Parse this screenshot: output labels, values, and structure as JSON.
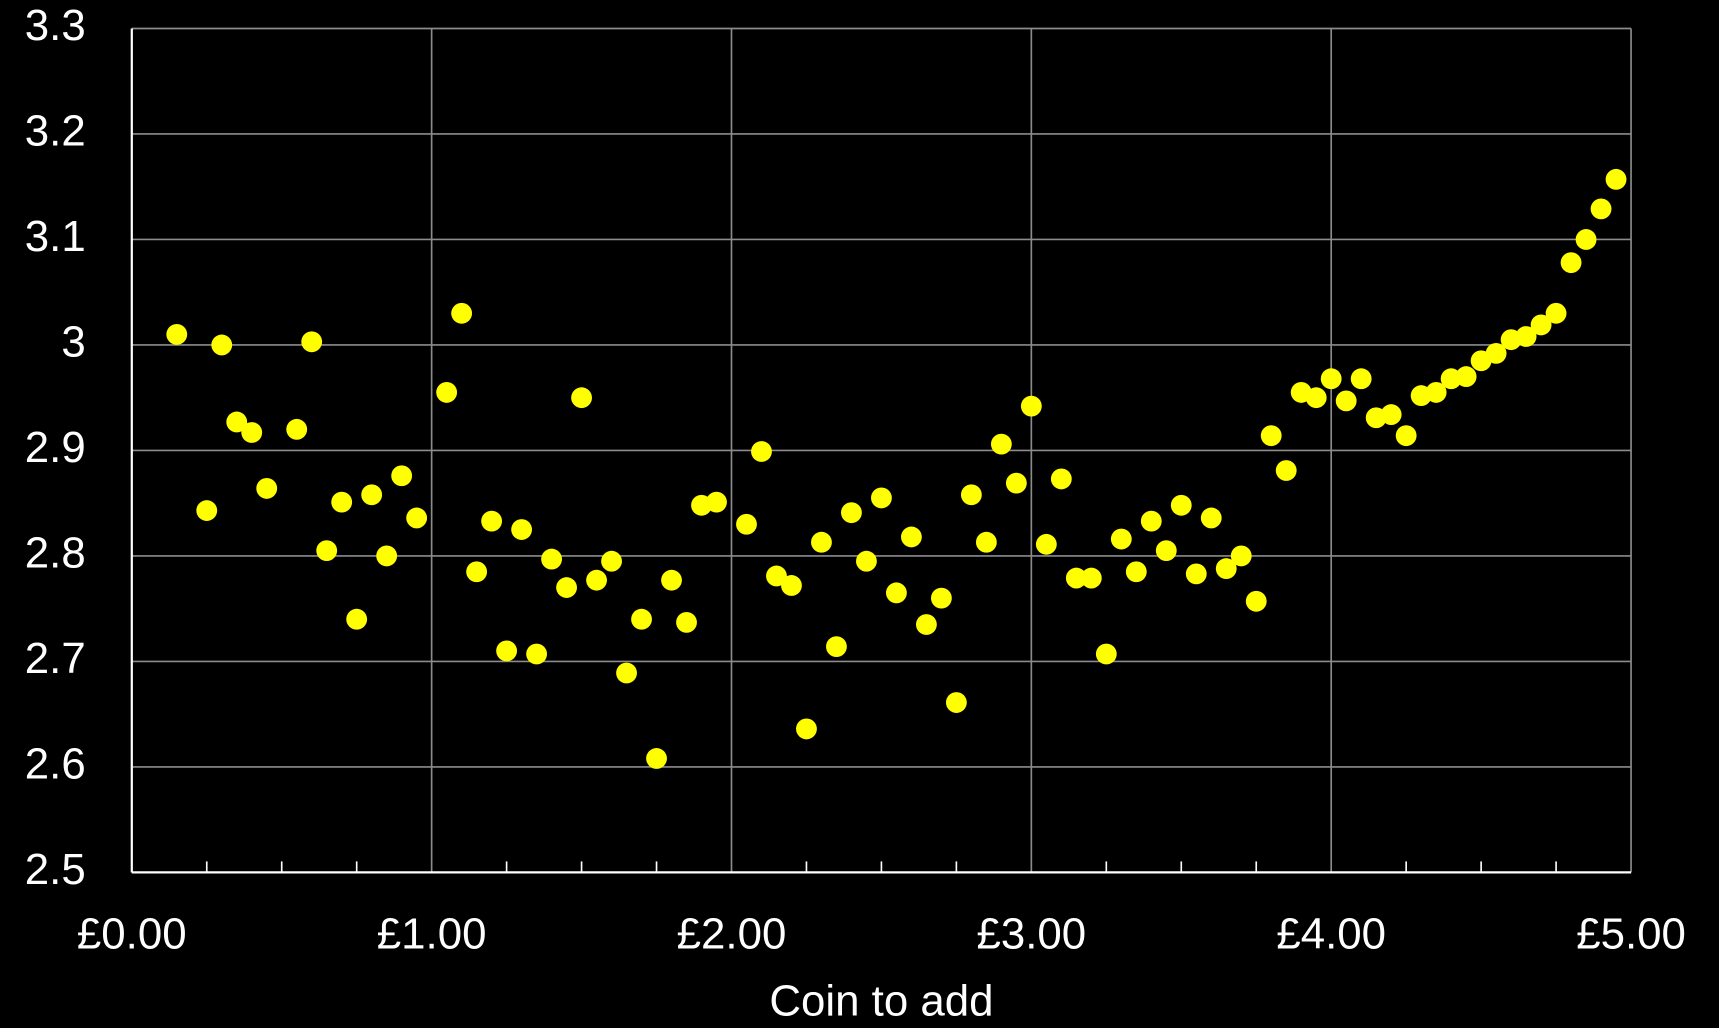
{
  "chart_data": {
    "type": "scatter",
    "x_label": "Coin to add",
    "color": "#ffff00",
    "grid": true,
    "x": [
      0.15,
      0.25,
      0.3,
      0.35,
      0.4,
      0.45,
      0.55,
      0.6,
      0.65,
      0.7,
      0.75,
      0.8,
      0.85,
      0.9,
      0.95,
      1.05,
      1.1,
      1.15,
      1.2,
      1.25,
      1.3,
      1.35,
      1.4,
      1.45,
      1.5,
      1.55,
      1.6,
      1.65,
      1.7,
      1.75,
      1.8,
      1.85,
      1.9,
      1.95,
      2.05,
      2.1,
      2.15,
      2.2,
      2.25,
      2.3,
      2.35,
      2.4,
      2.45,
      2.5,
      2.55,
      2.6,
      2.65,
      2.7,
      2.75,
      2.8,
      2.85,
      2.9,
      2.95,
      3.0,
      3.05,
      3.1,
      3.15,
      3.2,
      3.25,
      3.3,
      3.35,
      3.4,
      3.45,
      3.5,
      3.55,
      3.6,
      3.65,
      3.7,
      3.75,
      3.8,
      3.85,
      3.9,
      3.95,
      4.0,
      4.05,
      4.1,
      4.15,
      4.2,
      4.25,
      4.3,
      4.35,
      4.4,
      4.45,
      4.5,
      4.55,
      4.6,
      4.65,
      4.7,
      4.75,
      4.8,
      4.85,
      4.9,
      4.95
    ],
    "values": [
      3.01,
      2.843,
      3.0,
      2.927,
      2.917,
      2.864,
      2.92,
      3.003,
      2.805,
      2.851,
      2.74,
      2.858,
      2.8,
      2.876,
      2.836,
      2.955,
      3.03,
      2.785,
      2.833,
      2.71,
      2.825,
      2.707,
      2.797,
      2.77,
      2.95,
      2.777,
      2.795,
      2.689,
      2.74,
      2.608,
      2.777,
      2.737,
      2.848,
      2.851,
      2.83,
      2.899,
      2.781,
      2.772,
      2.636,
      2.813,
      2.714,
      2.841,
      2.795,
      2.855,
      2.765,
      2.818,
      2.735,
      2.76,
      2.661,
      2.858,
      2.813,
      2.906,
      2.869,
      2.942,
      2.811,
      2.873,
      2.779,
      2.779,
      2.707,
      2.816,
      2.785,
      2.833,
      2.805,
      2.848,
      2.783,
      2.836,
      2.788,
      2.8,
      2.757,
      2.914,
      2.881,
      2.955,
      2.95,
      2.968,
      2.947,
      2.968,
      2.931,
      2.934,
      2.914,
      2.952,
      2.955,
      2.968,
      2.97,
      2.985,
      2.992,
      3.005,
      3.008,
      3.019,
      3.03,
      3.078,
      3.1,
      3.129,
      3.157
    ],
    "xlim": [
      0,
      5
    ],
    "xticks": [
      {
        "value": 0,
        "label": "£0.00"
      },
      {
        "value": 1,
        "label": "£1.00"
      },
      {
        "value": 2,
        "label": "£2.00"
      },
      {
        "value": 3,
        "label": "£3.00"
      },
      {
        "value": 4,
        "label": "£4.00"
      },
      {
        "value": 5,
        "label": "£5.00"
      }
    ],
    "xminorticks": [
      0.25,
      0.5,
      0.75,
      1.25,
      1.5,
      1.75,
      2.25,
      2.5,
      2.75,
      3.25,
      3.5,
      3.75,
      4.25,
      4.5,
      4.75
    ],
    "ylim": [
      2.5,
      3.3
    ],
    "yticks": [
      2.5,
      2.6,
      2.7,
      2.8,
      2.9,
      3,
      3.1,
      3.2,
      3.3
    ]
  }
}
